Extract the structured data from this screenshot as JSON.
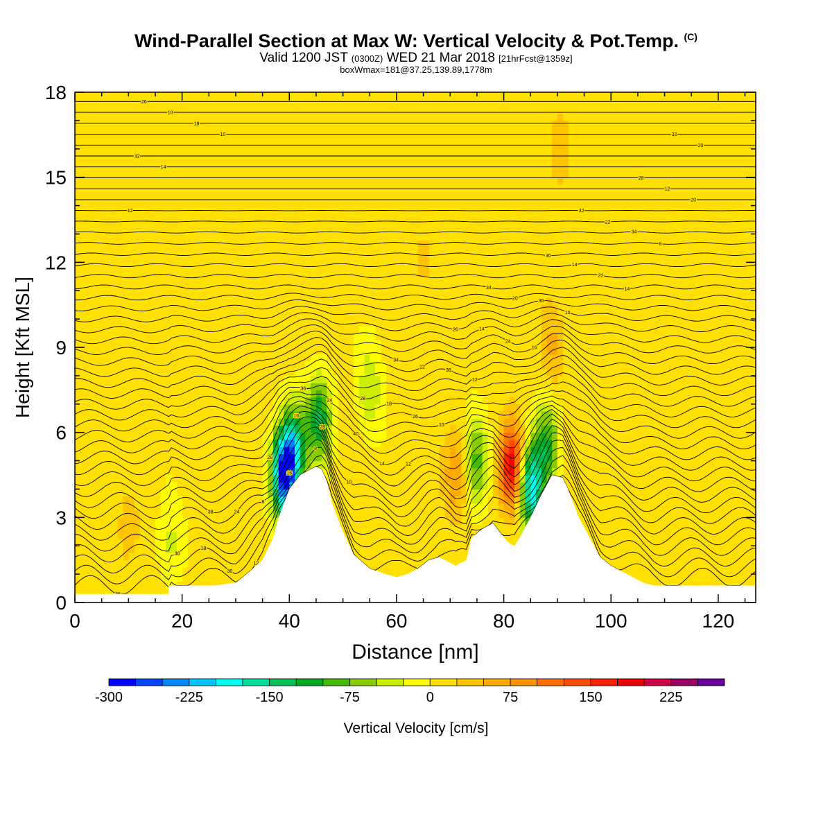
{
  "title": {
    "main": "Wind-Parallel Section at Max W: Vertical Velocity & Pot.Temp.",
    "copyright": "(C)",
    "valid_prefix": "Valid 1200 JST",
    "valid_zulu": "(0300Z)",
    "valid_date": "WED 21 Mar 2018",
    "forecast": "[21hrFcst@1359z]",
    "box": "boxWmax=181@37.25,139.89,1778m"
  },
  "chart_data": {
    "type": "contour-section",
    "xlabel": "Distance [nm]",
    "ylabel": "Height [Kft MSL]",
    "xlim": [
      0,
      127
    ],
    "ylim": [
      0,
      18
    ],
    "xticks": [
      0,
      20,
      40,
      60,
      80,
      100,
      120
    ],
    "yticks": [
      0,
      3,
      6,
      9,
      12,
      15,
      18
    ],
    "terrain": {
      "x": [
        0,
        17.5,
        17.5,
        26,
        30,
        32,
        35,
        37,
        38,
        39,
        40,
        42,
        44,
        45,
        46,
        47,
        48,
        50,
        52,
        55,
        58,
        60,
        62,
        64,
        66,
        68,
        70,
        71,
        73,
        74,
        76,
        78,
        80,
        81,
        82,
        83,
        85,
        87,
        89,
        91,
        92,
        94,
        96,
        98,
        100,
        102,
        104,
        106,
        108,
        112,
        120,
        127
      ],
      "height_kft": [
        0.3,
        0.3,
        0.6,
        0.6,
        0.7,
        1.0,
        1.5,
        2.3,
        3.0,
        3.5,
        4.0,
        4.5,
        4.7,
        4.8,
        4.7,
        4.3,
        3.5,
        2.5,
        1.7,
        1.2,
        1.0,
        0.9,
        1.0,
        1.2,
        1.5,
        1.6,
        1.4,
        1.3,
        1.5,
        2.3,
        2.6,
        2.8,
        2.3,
        2.1,
        2.0,
        2.3,
        3.0,
        3.8,
        4.5,
        4.4,
        4.0,
        3.0,
        2.3,
        1.6,
        1.3,
        1.1,
        0.9,
        0.7,
        0.6,
        0.6,
        0.6,
        0.6
      ]
    },
    "w_cells": [
      {
        "x": 39,
        "z": 4.5,
        "w": -290
      },
      {
        "x": 41,
        "z": 5.5,
        "w": -150
      },
      {
        "x": 45.5,
        "z": 6.5,
        "w": -130
      },
      {
        "x": 55,
        "z": 7.5,
        "w": -60
      },
      {
        "x": 75,
        "z": 5.0,
        "w": -90
      },
      {
        "x": 85,
        "z": 4.0,
        "w": -200
      },
      {
        "x": 88,
        "z": 5.5,
        "w": -110
      },
      {
        "x": 81.5,
        "z": 4.8,
        "w": 181
      },
      {
        "x": 71,
        "z": 4.5,
        "w": 70
      },
      {
        "x": 89,
        "z": 9.0,
        "w": 45
      },
      {
        "x": 10,
        "z": 2.5,
        "w": 30
      },
      {
        "x": 18,
        "z": 2.0,
        "w": -40
      },
      {
        "x": 65,
        "z": 12.0,
        "w": 25
      },
      {
        "x": 90,
        "z": 16.0,
        "w": 35
      }
    ],
    "theta_levels_c": [
      6,
      8,
      10,
      12,
      14,
      16,
      18,
      20,
      22,
      24,
      26,
      28,
      30,
      32,
      34,
      36,
      38,
      40
    ],
    "contour_labels": [
      "36",
      "38",
      "36",
      "34",
      "34",
      "32",
      "32",
      "30",
      "28",
      "28",
      "26",
      "30",
      "28",
      "26",
      "24",
      "24",
      "22",
      "20",
      "22",
      "20",
      "18",
      "16",
      "18",
      "14",
      "14",
      "12",
      "10",
      "8",
      "40",
      "38",
      "36",
      "34",
      "32",
      "30",
      "28",
      "26",
      "24",
      "22",
      "20",
      "18",
      "16",
      "14",
      "12",
      "10",
      "8",
      "14",
      "12",
      "10",
      "15",
      "16",
      "14",
      "12",
      "10",
      "8",
      "12"
    ],
    "colorbar": {
      "label": "Vertical Velocity [cm/s]",
      "levels": [
        -300,
        -275,
        -250,
        -225,
        -200,
        -175,
        -150,
        -125,
        -100,
        -75,
        -50,
        -25,
        0,
        25,
        50,
        75,
        100,
        125,
        150,
        175,
        200,
        225,
        250
      ],
      "tick_labels": [
        "-300",
        "-225",
        "-150",
        "-75",
        "0",
        "75",
        "150",
        "225"
      ],
      "colors": [
        "#0000ff",
        "#0044ff",
        "#0088ff",
        "#00c4ff",
        "#00ffee",
        "#00dd99",
        "#00c055",
        "#00aa22",
        "#44bb00",
        "#88cc00",
        "#ccee00",
        "#ffff00",
        "#ffe000",
        "#ffc400",
        "#ffaa00",
        "#ff9000",
        "#ff7000",
        "#ff4c00",
        "#ff2000",
        "#ee0000",
        "#cc0044",
        "#990066",
        "#660099"
      ]
    }
  }
}
